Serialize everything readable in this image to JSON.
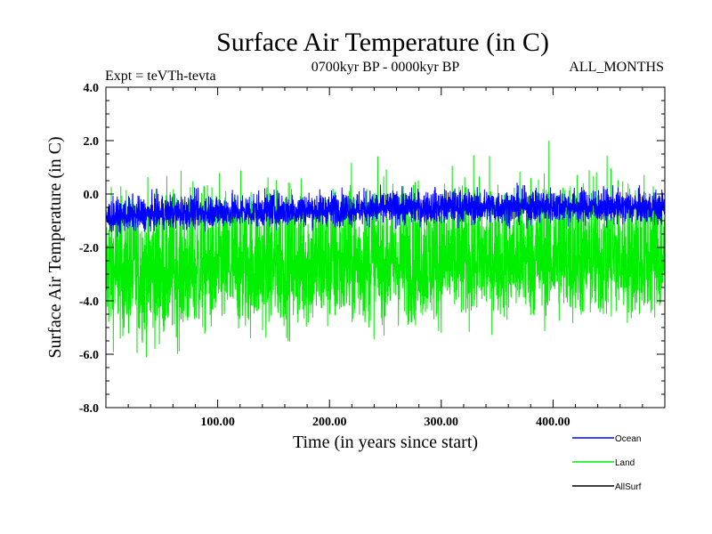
{
  "chart_data": {
    "type": "line",
    "title": "Surface Air Temperature (in C)",
    "subtitle_left": "Expt = teVTh-tevta",
    "subtitle_center": "0700kyr BP - 0000kyr BP",
    "subtitle_right": "ALL_MONTHS",
    "xlabel": "Time (in years since start)",
    "ylabel": "Surface Air Temperature (in C)",
    "xlim": [
      0,
      500
    ],
    "ylim": [
      -8.0,
      4.0
    ],
    "x_ticks": [
      100,
      200,
      300,
      400
    ],
    "x_tick_labels": [
      "100.00",
      "200.00",
      "300.00",
      "400.00"
    ],
    "y_ticks": [
      -8,
      -6,
      -4,
      -2,
      0,
      2,
      4
    ],
    "y_tick_labels": [
      "-8.0",
      "-6.0",
      "-4.0",
      "-2.0",
      "0.0",
      "2.0",
      "4.0"
    ],
    "series": [
      {
        "name": "Ocean",
        "color": "#0000ff",
        "x": [
          0,
          50,
          100,
          150,
          200,
          250,
          300,
          350,
          400,
          450,
          500
        ],
        "center": [
          -0.9,
          -0.75,
          -0.7,
          -0.65,
          -0.6,
          -0.55,
          -0.5,
          -0.5,
          -0.45,
          -0.5,
          -0.5
        ],
        "min": [
          -1.6,
          -1.5,
          -1.4,
          -1.4,
          -1.35,
          -1.35,
          -1.3,
          -1.3,
          -1.3,
          -1.3,
          -1.3
        ],
        "max": [
          0.0,
          0.2,
          0.3,
          0.3,
          0.35,
          0.35,
          0.4,
          0.4,
          0.45,
          0.4,
          0.3
        ]
      },
      {
        "name": "Land",
        "color": "#00ee00",
        "x": [
          0,
          50,
          100,
          150,
          200,
          250,
          300,
          350,
          400,
          450,
          500
        ],
        "center": [
          -3.0,
          -2.9,
          -2.8,
          -2.75,
          -2.7,
          -2.65,
          -2.6,
          -2.55,
          -2.5,
          -2.55,
          -2.5
        ],
        "min": [
          -6.0,
          -6.4,
          -6.0,
          -5.8,
          -5.8,
          -5.5,
          -5.5,
          -5.3,
          -5.4,
          -5.5,
          -5.2
        ],
        "max": [
          0.9,
          1.1,
          1.2,
          1.3,
          1.4,
          1.4,
          1.5,
          1.4,
          2.1,
          1.6,
          1.4
        ]
      },
      {
        "name": "AllSurf",
        "color": "#000000",
        "x": [],
        "center": [],
        "min": [],
        "max": []
      }
    ],
    "legend_placement": "bottom-right",
    "grid": false
  }
}
